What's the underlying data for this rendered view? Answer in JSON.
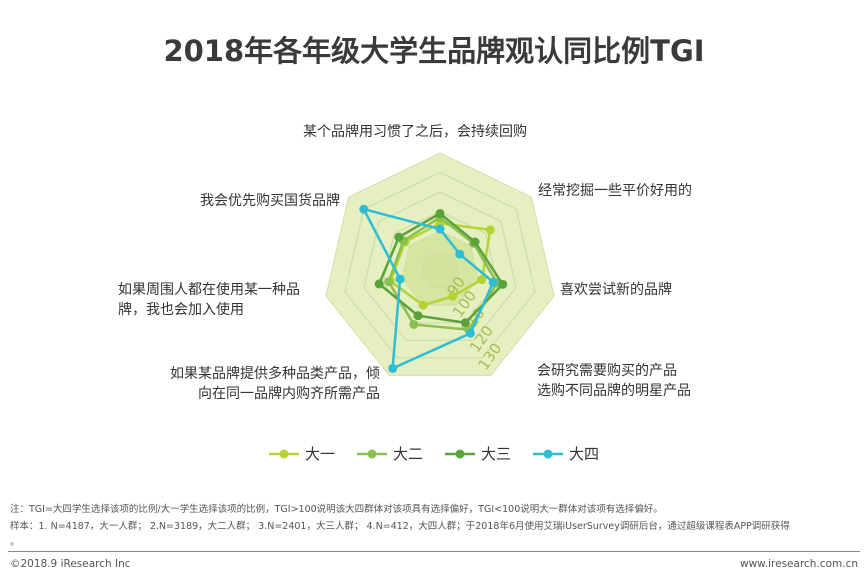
{
  "title": "2018年各年级大学生品牌观认同比例TGI",
  "chart_data": {
    "type": "radar",
    "title": "2018年各年级大学生品牌观认同比例TGI",
    "axes": [
      "某个品牌用习惯了之后，会持续回购",
      "经常挖掘一些平价好用的",
      "喜欢尝试新的品牌",
      "会研究需要购买的产品 选购不同品牌的明星产品",
      "如果某品牌提供多种品类产品，倾向在同一品牌内购齐所需产品",
      "如果周围人都在使用某一种品牌，我也会加入使用",
      "我会优先购买国货品牌"
    ],
    "axis_label_lines": [
      [
        "某个品牌用习惯了之后，会持续回购"
      ],
      [
        "经常挖掘一些平价好用的"
      ],
      [
        "喜欢尝试新的品牌"
      ],
      [
        "会研究需要购买的产品",
        "选购不同品牌的明星产品"
      ],
      [
        "如果某品牌提供多种品类产品，倾",
        "向在同一品牌内购齐所需产品"
      ],
      [
        "如果周围人都在使用某一种品",
        "牌，我也会加入使用"
      ],
      [
        "我会优先购买国货品牌"
      ]
    ],
    "range": [
      80,
      140
    ],
    "tick_labels": [
      "90",
      "100",
      "110",
      "120",
      "130"
    ],
    "series": [
      {
        "name": "大一",
        "color": "#b5d334",
        "values": [
          104,
          113,
          102,
          95,
          100,
          106,
          103
        ]
      },
      {
        "name": "大二",
        "color": "#8bc050",
        "values": [
          107,
          102,
          110,
          114,
          111,
          107,
          104
        ]
      },
      {
        "name": "大三",
        "color": "#5aa23c",
        "values": [
          109,
          103,
          113,
          110,
          106,
          112,
          107
        ]
      },
      {
        "name": "大四",
        "color": "#2dbdd6",
        "values": [
          101,
          93,
          108,
          116,
          136,
          101,
          130
        ]
      }
    ],
    "legend": "bottom"
  },
  "notes": [
    "注：TGI=大四学生选择该项的比例/大一学生选择该项的比例，TGI>100说明该大四群体对该项具有选择偏好，TGI<100说明大一群体对该项有选择偏好。",
    "样本：1. N=4187，大一人群； 2.N=3189，大二人群； 3.N=2401，大三人群； 4.N=412，大四人群；于2018年6月使用艾瑞iUserSurvey调研后台，通过超级课程表APP调研获得",
    "。"
  ],
  "footer": {
    "copyright": "©2018.9 iResearch Inc",
    "url": "www.iresearch.com.cn"
  }
}
